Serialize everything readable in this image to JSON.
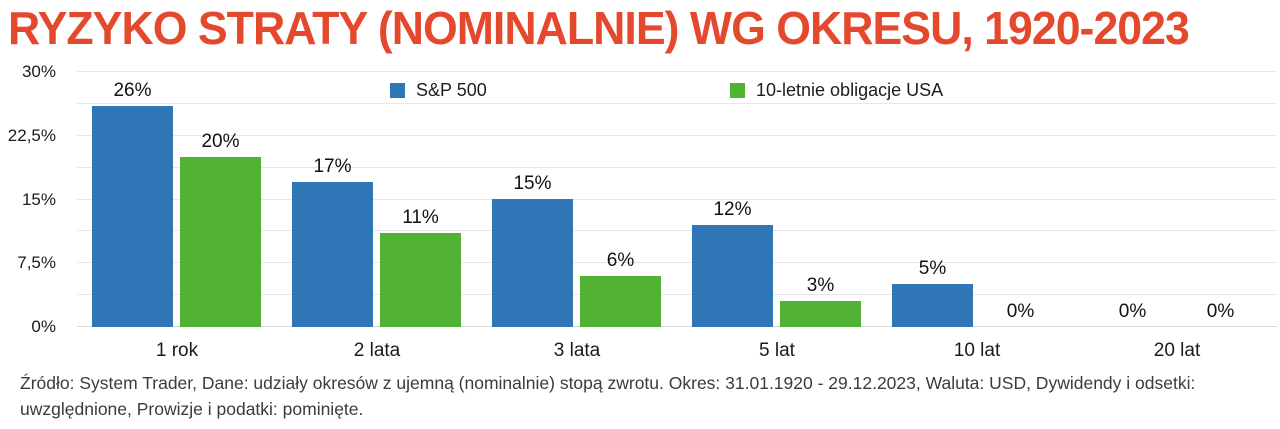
{
  "title": "RYZYKO STRATY (NOMINALNIE) WG OKRESU, 1920-2023",
  "footer": "Źródło: System Trader, Dane: udziały okresów z ujemną (nominalnie) stopą zwrotu. Okres: 31.01.1920 - 29.12.2023, Waluta: USD, Dywidendy i odsetki: uwzględnione, Prowizje i podatki: pominięte.",
  "colors": {
    "sp500": "#2E76B5",
    "bonds": "#52B234",
    "title": "#E4492E",
    "grid": "#E7E7EA"
  },
  "chart_data": {
    "type": "bar",
    "categories": [
      "1 rok",
      "2 lata",
      "3 lata",
      "5 lat",
      "10 lat",
      "20 lat"
    ],
    "series": [
      {
        "name": "S&P 500",
        "color_key": "sp500",
        "values": [
          26,
          17,
          15,
          12,
          5,
          0
        ]
      },
      {
        "name": "10-letnie obligacje USA",
        "color_key": "bonds",
        "values": [
          20,
          11,
          6,
          3,
          0,
          0
        ]
      }
    ],
    "value_suffix": "%",
    "y_ticks": [
      {
        "label": "30%",
        "value": 30
      },
      {
        "label": "22,5%",
        "value": 22.5
      },
      {
        "label": "15%",
        "value": 15
      },
      {
        "label": "7,5%",
        "value": 7.5
      },
      {
        "label": "0%",
        "value": 0
      }
    ],
    "ylim": [
      0,
      30
    ],
    "grid_step": 3.75,
    "legend_position": "top",
    "grid": true
  }
}
